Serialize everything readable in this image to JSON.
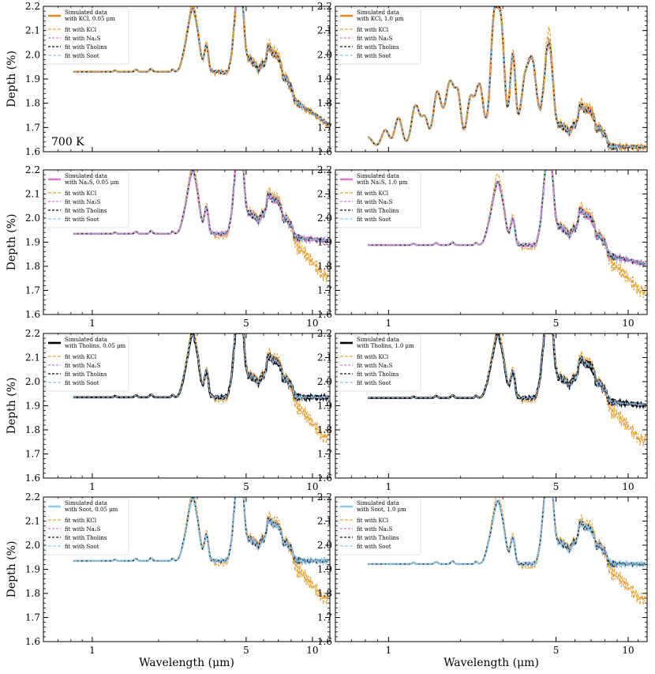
{
  "chart_data": {
    "type": "line",
    "xscale": "log",
    "xlim": [
      0.6,
      12
    ],
    "ylim": [
      1.6,
      2.2
    ],
    "xticks": [
      1,
      5,
      10
    ],
    "yticks": [
      1.6,
      1.7,
      1.8,
      1.9,
      2.0,
      2.1,
      2.2
    ],
    "ylabel": "Depth (%)",
    "xlabel": "Wavelength (μm)",
    "series_styles": [
      {
        "key": "kcl",
        "color": "#e8a33a",
        "dash": "4,2"
      },
      {
        "key": "na2s",
        "color": "#d77cc8",
        "dash": "3,2"
      },
      {
        "key": "tholins",
        "color": "#111111",
        "dash": "3,2"
      },
      {
        "key": "soot",
        "color": "#8fcbe8",
        "dash": "4,2"
      }
    ],
    "panels": [
      {
        "id": "kcl-0.05",
        "row": 0,
        "col": 0,
        "sim_color": "#e8892a",
        "baseline": 1.93,
        "feature_amp": 1.0,
        "long_trend": -0.22,
        "short_amp": 0.0,
        "kcl_offset": 0.0,
        "show_xticklabels": false,
        "show_ylabel": true,
        "annotation": "700 K",
        "legend": [
          "Simulated data",
          "with KCl, 0.05 μm",
          "fit with KCl",
          "fit with Na₂S",
          "fit with Tholins",
          "fit with Soot"
        ]
      },
      {
        "id": "kcl-1.0",
        "row": 0,
        "col": 1,
        "sim_color": "#e8892a",
        "baseline": 1.62,
        "feature_amp": 1.0,
        "long_trend": 0.0,
        "short_amp": 1.0,
        "kcl_offset": 0.0,
        "show_xticklabels": false,
        "show_ylabel": false,
        "annotation": "",
        "legend": [
          "Simulated data",
          "with KCl, 1.0 μm",
          "fit with KCl",
          "fit with Na₂S",
          "fit with Tholins",
          "fit with Soot"
        ]
      },
      {
        "id": "na2s-0.05",
        "row": 1,
        "col": 0,
        "sim_color": "#d77cc8",
        "baseline": 1.935,
        "feature_amp": 1.0,
        "long_trend": -0.03,
        "short_amp": 0.0,
        "kcl_offset": -0.15,
        "show_xticklabels": true,
        "show_ylabel": true,
        "annotation": "",
        "legend": [
          "Simulated data",
          "with Na₂S, 0.05 μm",
          "fit with KCl",
          "fit with Na₂S",
          "fit with Tholins",
          "fit with Soot"
        ]
      },
      {
        "id": "na2s-1.0",
        "row": 1,
        "col": 1,
        "sim_color": "#d77cc8",
        "baseline": 1.888,
        "feature_amp": 1.0,
        "long_trend": -0.08,
        "short_amp": 0.0,
        "kcl_offset": -0.12,
        "show_xticklabels": true,
        "show_ylabel": false,
        "annotation": "",
        "legend": [
          "Simulated data",
          "with Na₂S, 1.0 μm",
          "fit with KCl",
          "fit with Na₂S",
          "fit with Tholins",
          "fit with Soot"
        ]
      },
      {
        "id": "tholins-0.05",
        "row": 2,
        "col": 0,
        "sim_color": "#000000",
        "baseline": 1.935,
        "feature_amp": 1.0,
        "long_trend": 0.0,
        "short_amp": 0.0,
        "kcl_offset": -0.17,
        "show_xticklabels": true,
        "show_ylabel": true,
        "annotation": "",
        "legend": [
          "Simulated data",
          "with Tholins, 0.05 μm",
          "fit with KCl",
          "fit with Na₂S",
          "fit with Tholins",
          "fit with Soot"
        ]
      },
      {
        "id": "tholins-1.0",
        "row": 2,
        "col": 1,
        "sim_color": "#000000",
        "baseline": 1.932,
        "feature_amp": 1.0,
        "long_trend": -0.03,
        "short_amp": 0.0,
        "kcl_offset": -0.15,
        "show_xticklabels": true,
        "show_ylabel": false,
        "annotation": "",
        "legend": [
          "Simulated data",
          "with Tholins, 1.0 μm",
          "fit with KCl",
          "fit with Na₂S",
          "fit with Tholins",
          "fit with Soot"
        ]
      },
      {
        "id": "soot-0.05",
        "row": 3,
        "col": 0,
        "sim_color": "#8fcbe8",
        "baseline": 1.935,
        "feature_amp": 1.0,
        "long_trend": 0.0,
        "short_amp": 0.0,
        "kcl_offset": -0.16,
        "show_xticklabels": true,
        "show_ylabel": true,
        "annotation": "",
        "legend": [
          "Simulated data",
          "with Soot, 0.05 μm",
          "fit with KCl",
          "fit with Na₂S",
          "fit with Tholins",
          "fit with Soot"
        ]
      },
      {
        "id": "soot-1.0",
        "row": 3,
        "col": 1,
        "sim_color": "#8fcbe8",
        "baseline": 1.922,
        "feature_amp": 1.0,
        "long_trend": 0.0,
        "short_amp": 0.0,
        "kcl_offset": -0.15,
        "show_xticklabels": true,
        "show_ylabel": false,
        "annotation": "",
        "legend": [
          "Simulated data",
          "with Soot, 1.0 μm",
          "fit with KCl",
          "fit with Na₂S",
          "fit with Tholins",
          "fit with Soot"
        ]
      }
    ]
  }
}
